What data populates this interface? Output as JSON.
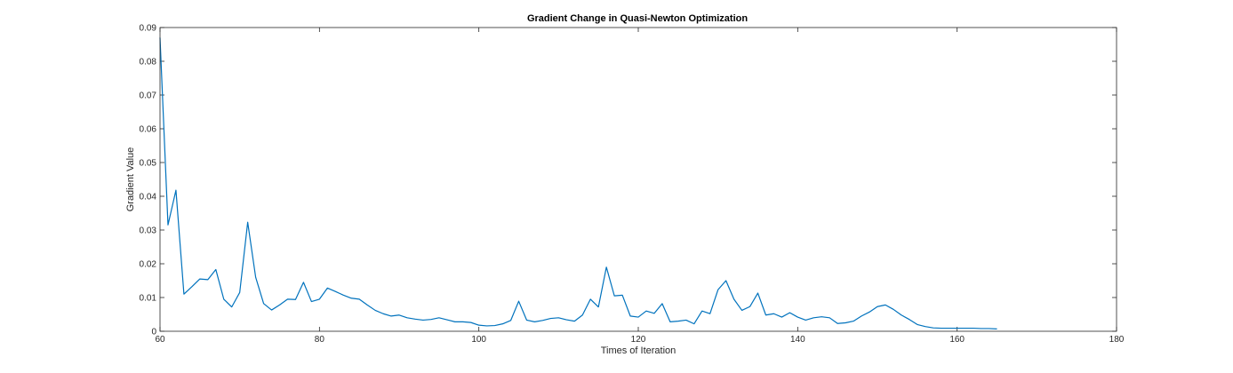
{
  "chart_data": {
    "type": "line",
    "title": "Gradient Change in Quasi-Newton Optimization",
    "xlabel": "Times of Iteration",
    "ylabel": "Gradient Value",
    "xlim": [
      60,
      180
    ],
    "ylim": [
      0,
      0.09
    ],
    "xticks": [
      "60",
      "80",
      "100",
      "120",
      "140",
      "160",
      "180"
    ],
    "yticks": [
      "0",
      "0.01",
      "0.02",
      "0.03",
      "0.04",
      "0.05",
      "0.06",
      "0.07",
      "0.08",
      "0.09"
    ],
    "grid": false,
    "line_color": "#0072BD",
    "x": [
      60,
      61,
      62,
      63,
      64,
      65,
      66,
      67,
      68,
      69,
      70,
      71,
      72,
      73,
      74,
      75,
      76,
      77,
      78,
      79,
      80,
      81,
      82,
      83,
      84,
      85,
      86,
      87,
      88,
      89,
      90,
      91,
      92,
      93,
      94,
      95,
      96,
      97,
      98,
      99,
      100,
      101,
      102,
      103,
      104,
      105,
      106,
      107,
      108,
      109,
      110,
      111,
      112,
      113,
      114,
      115,
      116,
      117,
      118,
      119,
      120,
      121,
      122,
      123,
      124,
      125,
      126,
      127,
      128,
      129,
      130,
      131,
      132,
      133,
      134,
      135,
      136,
      137,
      138,
      139,
      140,
      141,
      142,
      143,
      144,
      145,
      146,
      147,
      148,
      149,
      150,
      151,
      152,
      153,
      154,
      155,
      156,
      157,
      158,
      159,
      160,
      161,
      162,
      163,
      164,
      165
    ],
    "y": [
      0.087,
      0.0315,
      0.0418,
      0.011,
      0.0132,
      0.0155,
      0.0153,
      0.0183,
      0.0095,
      0.0072,
      0.0115,
      0.0323,
      0.016,
      0.0082,
      0.0063,
      0.0078,
      0.0095,
      0.0094,
      0.0145,
      0.0088,
      0.0095,
      0.0128,
      0.0118,
      0.0107,
      0.0098,
      0.0095,
      0.0078,
      0.0062,
      0.0052,
      0.0045,
      0.0048,
      0.004,
      0.0036,
      0.0033,
      0.0035,
      0.004,
      0.0034,
      0.0028,
      0.0028,
      0.0026,
      0.0018,
      0.0016,
      0.0017,
      0.0022,
      0.0032,
      0.0089,
      0.0033,
      0.0028,
      0.0032,
      0.0038,
      0.004,
      0.0034,
      0.003,
      0.0048,
      0.0095,
      0.0072,
      0.019,
      0.0105,
      0.0107,
      0.0045,
      0.0042,
      0.006,
      0.0053,
      0.0082,
      0.0028,
      0.003,
      0.0033,
      0.0022,
      0.006,
      0.0052,
      0.0123,
      0.015,
      0.0095,
      0.0062,
      0.0073,
      0.0113,
      0.0048,
      0.0052,
      0.0042,
      0.0055,
      0.0042,
      0.0033,
      0.004,
      0.0043,
      0.004,
      0.0023,
      0.0025,
      0.003,
      0.0045,
      0.0057,
      0.0073,
      0.0078,
      0.0065,
      0.0048,
      0.0035,
      0.002,
      0.0014,
      0.001,
      0.0009,
      0.0009,
      0.0009,
      0.0009,
      0.0009,
      0.0008,
      0.0008,
      0.0007
    ]
  }
}
